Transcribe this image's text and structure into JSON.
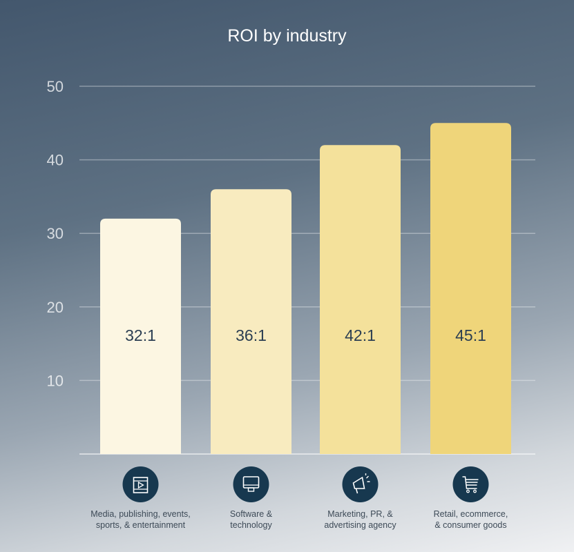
{
  "chart_data": {
    "type": "bar",
    "title": "ROI by industry",
    "categories": [
      "Media, publishing, events, sports, & entertainment",
      "Software & technology",
      "Marketing, PR, & advertising agency",
      "Retail, ecommerce, & consumer goods"
    ],
    "category_lines": [
      [
        "Media, publishing, events,",
        "sports, & entertainment"
      ],
      [
        "Software &",
        "technology"
      ],
      [
        "Marketing, PR, &",
        "advertising agency"
      ],
      [
        "Retail, ecommerce,",
        "& consumer goods"
      ]
    ],
    "icons": [
      "film-icon",
      "monitor-icon",
      "megaphone-icon",
      "shopping-cart-icon"
    ],
    "values": [
      32,
      36,
      42,
      45
    ],
    "data_labels": [
      "32:1",
      "36:1",
      "42:1",
      "45:1"
    ],
    "bar_colors": [
      "#fcf6e2",
      "#f8ebbf",
      "#f4e19b",
      "#efd57a"
    ],
    "yticks": [
      10,
      20,
      30,
      40,
      50
    ],
    "ylim": [
      0,
      50
    ],
    "grid": true,
    "xlabel": "",
    "ylabel": ""
  }
}
